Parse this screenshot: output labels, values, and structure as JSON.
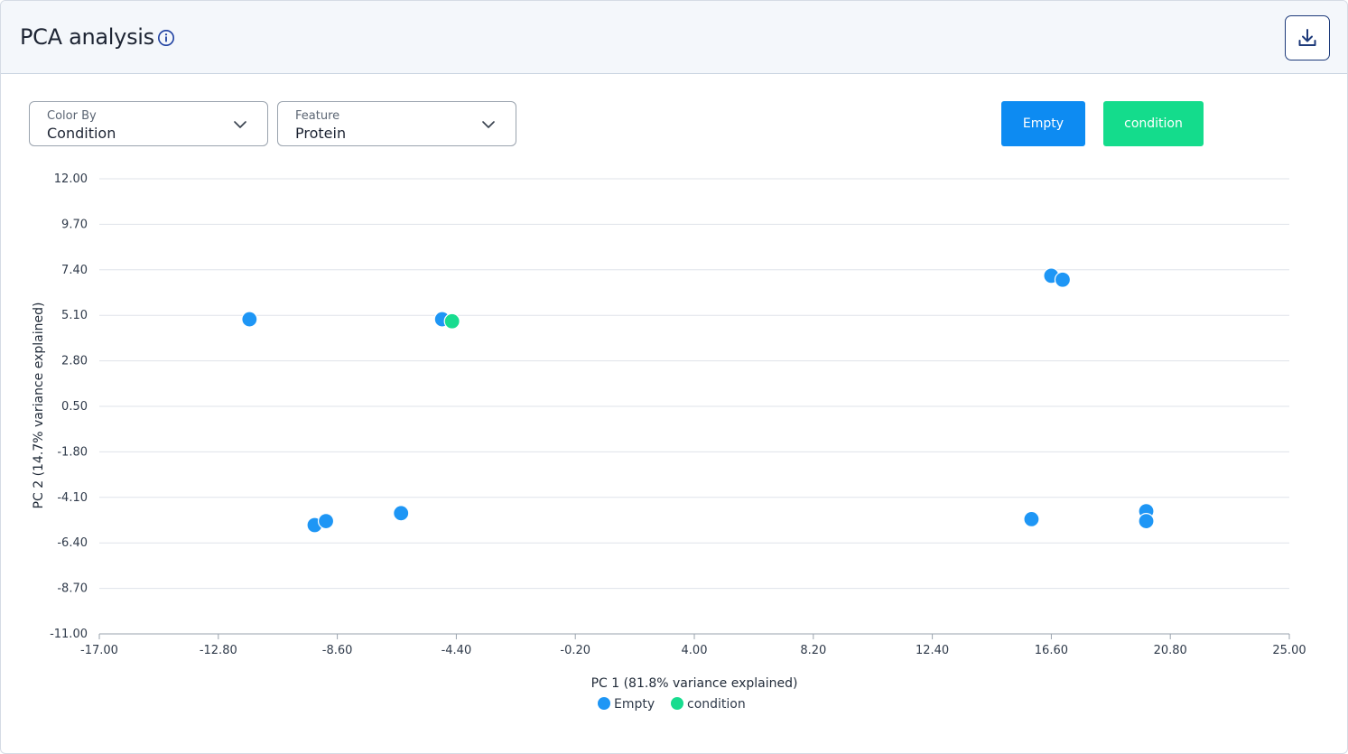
{
  "header": {
    "title": "PCA analysis",
    "info_icon": "info-circle-icon",
    "download_icon": "download-icon"
  },
  "controls": {
    "color_by": {
      "label": "Color By",
      "value": "Condition"
    },
    "feature": {
      "label": "Feature",
      "value": "Protein"
    }
  },
  "legend_buttons": [
    {
      "label": "Empty",
      "color": "#0d8bf2"
    },
    {
      "label": "condition",
      "color": "#14dc8c"
    }
  ],
  "colors": {
    "empty": "#1e96f5",
    "condition": "#18dc8f",
    "grid": "#dfe3ea",
    "axis": "#9aa3ae"
  },
  "chart_data": {
    "type": "scatter",
    "title": "",
    "xlabel": "PC 1 (81.8% variance explained)",
    "ylabel": "PC 2 (14.7% variance explained)",
    "xlim": [
      -17.0,
      25.0
    ],
    "ylim": [
      -11.0,
      12.0
    ],
    "x_ticks": [
      "-17.00",
      "-12.80",
      "-8.60",
      "-4.40",
      "-0.20",
      "4.00",
      "8.20",
      "12.40",
      "16.60",
      "20.80",
      "25.00"
    ],
    "y_ticks": [
      "12.00",
      "9.70",
      "7.40",
      "5.10",
      "2.80",
      "0.50",
      "-1.80",
      "-4.10",
      "-6.40",
      "-8.70",
      "-11.00"
    ],
    "grid": "horizontal",
    "legend_position": "bottom-center",
    "series": [
      {
        "name": "Empty",
        "color": "#1e96f5",
        "points": [
          {
            "x": -11.7,
            "y": 4.9
          },
          {
            "x": -9.4,
            "y": -5.5
          },
          {
            "x": -9.0,
            "y": -5.3
          },
          {
            "x": -6.35,
            "y": -4.9
          },
          {
            "x": -4.9,
            "y": 4.9
          },
          {
            "x": 15.9,
            "y": -5.2
          },
          {
            "x": 16.6,
            "y": 7.1
          },
          {
            "x": 17.0,
            "y": 6.9
          },
          {
            "x": 19.95,
            "y": -4.8
          },
          {
            "x": 19.95,
            "y": -5.3
          }
        ]
      },
      {
        "name": "condition",
        "color": "#18dc8f",
        "points": [
          {
            "x": -4.55,
            "y": 4.8
          }
        ]
      }
    ]
  }
}
